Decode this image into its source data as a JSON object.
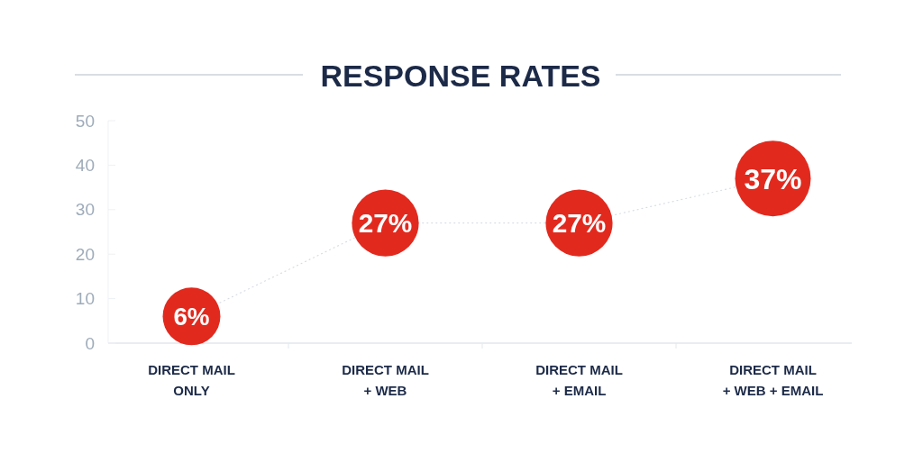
{
  "chart_data": {
    "type": "bubble",
    "title": "RESPONSE RATES",
    "categories": [
      "DIRECT MAIL\nONLY",
      "DIRECT MAIL\n+ WEB",
      "DIRECT MAIL\n+ EMAIL",
      "DIRECT MAIL\n+ WEB + EMAIL"
    ],
    "values": [
      6,
      27,
      27,
      37
    ],
    "sizes": [
      0.58,
      0.78,
      0.78,
      1
    ],
    "color": "#e2291e",
    "value_labels": [
      "6%",
      "27%",
      "27%",
      "37%"
    ],
    "ylim": [
      0,
      50
    ],
    "yticks": [
      0,
      10,
      20,
      30,
      40,
      50
    ],
    "grid": false,
    "line_style": "dotted"
  }
}
